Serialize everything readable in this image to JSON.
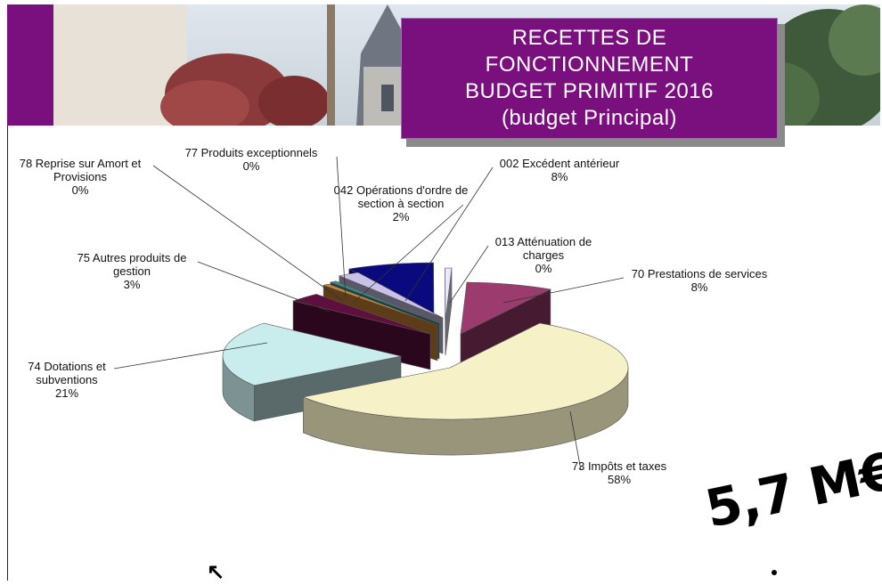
{
  "theme": {
    "accent": "#7a0f7e"
  },
  "header": {
    "title_lines": [
      "RECETTES DE",
      "FONCTIONNEMENT",
      "BUDGET PRIMITIF 2016",
      "(budget Principal)"
    ]
  },
  "total": "5,7 M€",
  "chart_data": {
    "type": "pie",
    "style": "3d-exploded",
    "slices": [
      {
        "label": [
          "70 Prestations de services"
        ],
        "value": 8,
        "display": "8%",
        "color": "#9b3b6e"
      },
      {
        "label": [
          "73 Impôts et taxes"
        ],
        "value": 58,
        "display": "58%",
        "color": "#f6f1c7"
      },
      {
        "label": [
          "74 Dotations et",
          "subventions"
        ],
        "value": 21,
        "display": "21%",
        "color": "#c9ecec"
      },
      {
        "label": [
          "75 Autres produits de",
          "gestion"
        ],
        "value": 3,
        "display": "3%",
        "color": "#5e0f3e"
      },
      {
        "label": [
          "78 Reprise sur Amort et",
          "Provisions"
        ],
        "value": 0,
        "display": "0%",
        "color": "#cc8833"
      },
      {
        "label": [
          "77 Produits exceptionnels"
        ],
        "value": 0,
        "display": "0%",
        "color": "#3b8a8a"
      },
      {
        "label": [
          "042 Opérations d'ordre de",
          "section à section"
        ],
        "value": 2,
        "display": "2%",
        "color": "#c9c2e6"
      },
      {
        "label": [
          "002 Excédent antérieur"
        ],
        "value": 8,
        "display": "8%",
        "color": "#0a0a7e"
      },
      {
        "label": [
          "013 Atténuation de",
          "charges"
        ],
        "value": 0,
        "display": "0%",
        "color": "#e8e8ff"
      }
    ]
  }
}
